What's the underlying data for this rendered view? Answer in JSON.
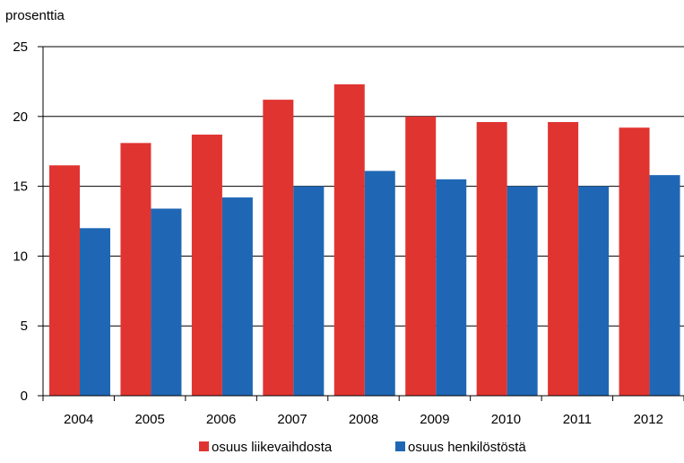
{
  "chart_data": {
    "type": "bar",
    "unit_label": "prosenttia",
    "categories": [
      "2004",
      "2005",
      "2006",
      "2007",
      "2008",
      "2009",
      "2010",
      "2011",
      "2012"
    ],
    "series": [
      {
        "name": "osuus liikevaihdosta",
        "color": "#e03431",
        "values": [
          16.5,
          18.1,
          18.7,
          21.2,
          22.3,
          20.0,
          19.6,
          19.6,
          19.2
        ]
      },
      {
        "name": "osuus henkilöstöstä",
        "color": "#1f67b4",
        "values": [
          12.0,
          13.4,
          14.2,
          15.0,
          16.1,
          15.5,
          15.0,
          15.0,
          15.8
        ]
      }
    ],
    "ylim": [
      0,
      25
    ],
    "yticks": [
      "0",
      "5",
      "10",
      "15",
      "20",
      "25"
    ],
    "grid": true,
    "legend_position": "bottom"
  }
}
